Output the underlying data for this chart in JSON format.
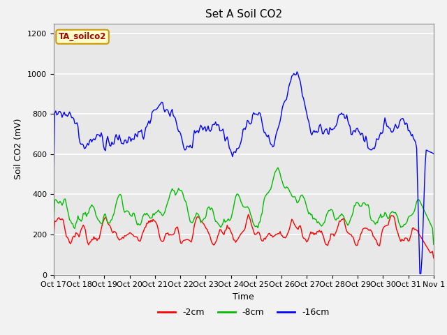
{
  "title": "Set A Soil CO2",
  "ylabel": "Soil CO2 (mV)",
  "xlabel": "Time",
  "annotation": "TA_soilco2",
  "x_tick_labels": [
    "Oct 17",
    "Oct 18",
    "Oct 19",
    "Oct 20",
    "Oct 21",
    "Oct 22",
    "Oct 23",
    "Oct 24",
    "Oct 25",
    "Oct 26",
    "Oct 27",
    "Oct 28",
    "Oct 29",
    "Oct 30",
    "Oct 31",
    "Nov 1"
  ],
  "ylim": [
    0,
    1250
  ],
  "legend_labels": [
    "-2cm",
    "-8cm",
    "-16cm"
  ],
  "legend_colors": [
    "#ff0000",
    "#00bb00",
    "#0000ff"
  ],
  "fig_background": "#f2f2f2",
  "plot_background": "#e8e8e8",
  "grid_color": "#ffffff",
  "title_fontsize": 11,
  "tick_fontsize": 8,
  "label_fontsize": 9,
  "annotation_facecolor": "#ffffcc",
  "annotation_edgecolor": "#cc9900",
  "annotation_textcolor": "#aa0000"
}
